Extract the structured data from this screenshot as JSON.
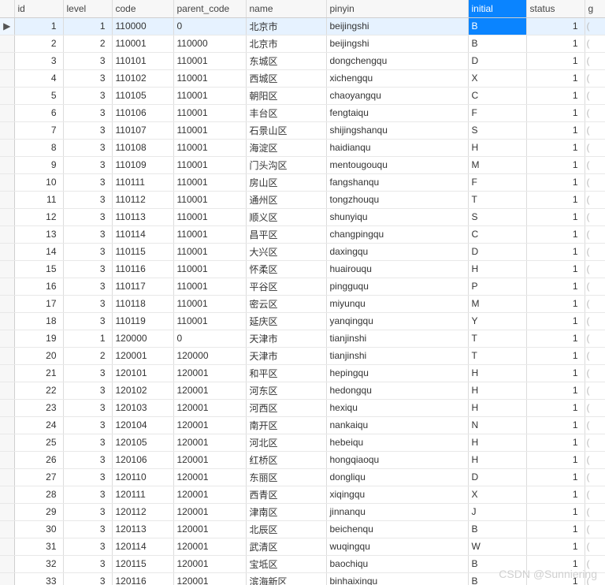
{
  "columns": [
    {
      "key": "id",
      "label": "id",
      "align": "num"
    },
    {
      "key": "level",
      "label": "level",
      "align": "num"
    },
    {
      "key": "code",
      "label": "code",
      "align": "txt"
    },
    {
      "key": "parent_code",
      "label": "parent_code",
      "align": "txt"
    },
    {
      "key": "name",
      "label": "name",
      "align": "txt"
    },
    {
      "key": "pinyin",
      "label": "pinyin",
      "align": "txt"
    },
    {
      "key": "initial",
      "label": "initial",
      "align": "txt"
    },
    {
      "key": "status",
      "label": "status",
      "align": "num"
    },
    {
      "key": "g",
      "label": "g",
      "align": "txt"
    }
  ],
  "selected_column": "initial",
  "selected_row_index": 0,
  "row_indicator": "▶",
  "gcell_text": "(",
  "watermark": "CSDN @Sunniering",
  "rows": [
    {
      "id": 1,
      "level": 1,
      "code": "110000",
      "parent_code": "0",
      "name": "北京市",
      "pinyin": "beijingshi",
      "initial": "B",
      "status": 1
    },
    {
      "id": 2,
      "level": 2,
      "code": "110001",
      "parent_code": "110000",
      "name": "北京市",
      "pinyin": "beijingshi",
      "initial": "B",
      "status": 1
    },
    {
      "id": 3,
      "level": 3,
      "code": "110101",
      "parent_code": "110001",
      "name": "东城区",
      "pinyin": "dongchengqu",
      "initial": "D",
      "status": 1
    },
    {
      "id": 4,
      "level": 3,
      "code": "110102",
      "parent_code": "110001",
      "name": "西城区",
      "pinyin": "xichengqu",
      "initial": "X",
      "status": 1
    },
    {
      "id": 5,
      "level": 3,
      "code": "110105",
      "parent_code": "110001",
      "name": "朝阳区",
      "pinyin": "chaoyangqu",
      "initial": "C",
      "status": 1
    },
    {
      "id": 6,
      "level": 3,
      "code": "110106",
      "parent_code": "110001",
      "name": "丰台区",
      "pinyin": "fengtaiqu",
      "initial": "F",
      "status": 1
    },
    {
      "id": 7,
      "level": 3,
      "code": "110107",
      "parent_code": "110001",
      "name": "石景山区",
      "pinyin": "shijingshanqu",
      "initial": "S",
      "status": 1
    },
    {
      "id": 8,
      "level": 3,
      "code": "110108",
      "parent_code": "110001",
      "name": "海淀区",
      "pinyin": "haidianqu",
      "initial": "H",
      "status": 1
    },
    {
      "id": 9,
      "level": 3,
      "code": "110109",
      "parent_code": "110001",
      "name": "门头沟区",
      "pinyin": "mentougouqu",
      "initial": "M",
      "status": 1
    },
    {
      "id": 10,
      "level": 3,
      "code": "110111",
      "parent_code": "110001",
      "name": "房山区",
      "pinyin": "fangshanqu",
      "initial": "F",
      "status": 1
    },
    {
      "id": 11,
      "level": 3,
      "code": "110112",
      "parent_code": "110001",
      "name": "通州区",
      "pinyin": "tongzhouqu",
      "initial": "T",
      "status": 1
    },
    {
      "id": 12,
      "level": 3,
      "code": "110113",
      "parent_code": "110001",
      "name": "顺义区",
      "pinyin": "shunyiqu",
      "initial": "S",
      "status": 1
    },
    {
      "id": 13,
      "level": 3,
      "code": "110114",
      "parent_code": "110001",
      "name": "昌平区",
      "pinyin": "changpingqu",
      "initial": "C",
      "status": 1
    },
    {
      "id": 14,
      "level": 3,
      "code": "110115",
      "parent_code": "110001",
      "name": "大兴区",
      "pinyin": "daxingqu",
      "initial": "D",
      "status": 1
    },
    {
      "id": 15,
      "level": 3,
      "code": "110116",
      "parent_code": "110001",
      "name": "怀柔区",
      "pinyin": "huairouqu",
      "initial": "H",
      "status": 1
    },
    {
      "id": 16,
      "level": 3,
      "code": "110117",
      "parent_code": "110001",
      "name": "平谷区",
      "pinyin": "pingguqu",
      "initial": "P",
      "status": 1
    },
    {
      "id": 17,
      "level": 3,
      "code": "110118",
      "parent_code": "110001",
      "name": "密云区",
      "pinyin": "miyunqu",
      "initial": "M",
      "status": 1
    },
    {
      "id": 18,
      "level": 3,
      "code": "110119",
      "parent_code": "110001",
      "name": "延庆区",
      "pinyin": "yanqingqu",
      "initial": "Y",
      "status": 1
    },
    {
      "id": 19,
      "level": 1,
      "code": "120000",
      "parent_code": "0",
      "name": "天津市",
      "pinyin": "tianjinshi",
      "initial": "T",
      "status": 1
    },
    {
      "id": 20,
      "level": 2,
      "code": "120001",
      "parent_code": "120000",
      "name": "天津市",
      "pinyin": "tianjinshi",
      "initial": "T",
      "status": 1
    },
    {
      "id": 21,
      "level": 3,
      "code": "120101",
      "parent_code": "120001",
      "name": "和平区",
      "pinyin": "hepingqu",
      "initial": "H",
      "status": 1
    },
    {
      "id": 22,
      "level": 3,
      "code": "120102",
      "parent_code": "120001",
      "name": "河东区",
      "pinyin": "hedongqu",
      "initial": "H",
      "status": 1
    },
    {
      "id": 23,
      "level": 3,
      "code": "120103",
      "parent_code": "120001",
      "name": "河西区",
      "pinyin": "hexiqu",
      "initial": "H",
      "status": 1
    },
    {
      "id": 24,
      "level": 3,
      "code": "120104",
      "parent_code": "120001",
      "name": "南开区",
      "pinyin": "nankaiqu",
      "initial": "N",
      "status": 1
    },
    {
      "id": 25,
      "level": 3,
      "code": "120105",
      "parent_code": "120001",
      "name": "河北区",
      "pinyin": "hebeiqu",
      "initial": "H",
      "status": 1
    },
    {
      "id": 26,
      "level": 3,
      "code": "120106",
      "parent_code": "120001",
      "name": "红桥区",
      "pinyin": "hongqiaoqu",
      "initial": "H",
      "status": 1
    },
    {
      "id": 27,
      "level": 3,
      "code": "120110",
      "parent_code": "120001",
      "name": "东丽区",
      "pinyin": "dongliqu",
      "initial": "D",
      "status": 1
    },
    {
      "id": 28,
      "level": 3,
      "code": "120111",
      "parent_code": "120001",
      "name": "西青区",
      "pinyin": "xiqingqu",
      "initial": "X",
      "status": 1
    },
    {
      "id": 29,
      "level": 3,
      "code": "120112",
      "parent_code": "120001",
      "name": "津南区",
      "pinyin": "jinnanqu",
      "initial": "J",
      "status": 1
    },
    {
      "id": 30,
      "level": 3,
      "code": "120113",
      "parent_code": "120001",
      "name": "北辰区",
      "pinyin": "beichenqu",
      "initial": "B",
      "status": 1
    },
    {
      "id": 31,
      "level": 3,
      "code": "120114",
      "parent_code": "120001",
      "name": "武清区",
      "pinyin": "wuqingqu",
      "initial": "W",
      "status": 1
    },
    {
      "id": 32,
      "level": 3,
      "code": "120115",
      "parent_code": "120001",
      "name": "宝坻区",
      "pinyin": "baochiqu",
      "initial": "B",
      "status": 1
    },
    {
      "id": 33,
      "level": 3,
      "code": "120116",
      "parent_code": "120001",
      "name": "滨海新区",
      "pinyin": "binhaixinqu",
      "initial": "B",
      "status": 1
    }
  ]
}
